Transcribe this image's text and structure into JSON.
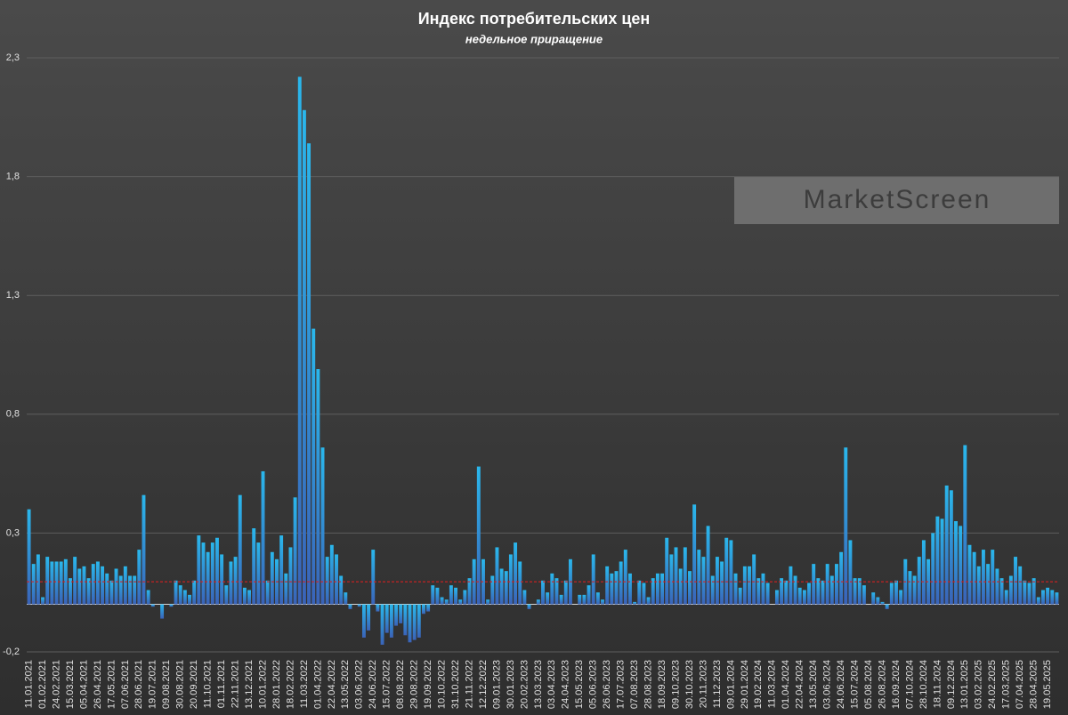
{
  "chart_data": {
    "type": "bar",
    "title": "Индекс потребительских цен",
    "subtitle": "недельное приращение",
    "watermark": "MarketScreen",
    "categories": [
      "11.01.2021",
      null,
      null,
      "01.02.2021",
      null,
      null,
      "24.02.2021",
      null,
      null,
      "15.03.2021",
      null,
      null,
      "05.04.2021",
      null,
      null,
      "26.04.2021",
      null,
      null,
      "17.05.2021",
      null,
      null,
      "07.06.2021",
      null,
      null,
      "28.06.2021",
      null,
      null,
      "19.07.2021",
      null,
      null,
      "09.08.2021",
      null,
      null,
      "30.08.2021",
      null,
      null,
      "20.09.2021",
      null,
      null,
      "11.10.2021",
      null,
      null,
      "01.11.2021",
      null,
      null,
      "22.11.2021",
      null,
      null,
      "13.12.2021",
      null,
      null,
      "10.01.2022",
      null,
      null,
      "28.01.2022",
      null,
      null,
      "18.02.2022",
      null,
      null,
      "11.03.2022",
      null,
      null,
      "01.04.2022",
      null,
      null,
      "22.04.2022",
      null,
      null,
      "13.05.2022",
      null,
      null,
      "03.06.2022",
      null,
      null,
      "24.06.2022",
      null,
      null,
      "15.07.2022",
      null,
      null,
      "08.08.2022",
      null,
      null,
      "29.08.2022",
      null,
      null,
      "19.09.2022",
      null,
      null,
      "10.10.2022",
      null,
      null,
      "31.10.2022",
      null,
      null,
      "21.11.2022",
      null,
      null,
      "12.12.2022",
      null,
      null,
      "09.01.2023",
      null,
      null,
      "30.01.2023",
      null,
      null,
      "20.02.2023",
      null,
      null,
      "13.03.2023",
      null,
      null,
      "03.04.2023",
      null,
      null,
      "24.04.2023",
      null,
      null,
      "15.05.2023",
      null,
      null,
      "05.06.2023",
      null,
      null,
      "26.06.2023",
      null,
      null,
      "17.07.2023",
      null,
      null,
      "07.08.2023",
      null,
      null,
      "28.08.2023",
      null,
      null,
      "18.09.2023",
      null,
      null,
      "09.10.2023",
      null,
      null,
      "30.10.2023",
      null,
      null,
      "20.11.2023",
      null,
      null,
      "11.12.2023",
      null,
      null,
      "09.01.2024",
      null,
      null,
      "29.01.2024",
      null,
      null,
      "19.02.2024",
      null,
      null,
      "11.03.2024",
      null,
      null,
      "01.04.2024",
      null,
      null,
      "22.04.2024",
      null,
      null,
      "13.05.2024",
      null,
      null,
      "03.06.2024",
      null,
      null,
      "24.06.2024",
      null,
      null,
      "15.07.2024",
      null,
      null,
      "05.08.2024",
      null,
      null,
      "26.08.2024",
      null,
      null,
      "16.09.2024",
      null,
      null,
      "07.10.2024",
      null,
      null,
      "28.10.2024",
      null,
      null,
      "18.11.2024",
      null,
      null,
      "09.12.2024",
      null,
      null,
      "13.01.2025",
      null,
      null,
      "03.02.2025",
      null,
      null,
      "24.02.2025",
      null,
      null,
      "17.03.2025",
      null,
      null,
      "07.04.2025",
      null,
      null,
      "28.04.2025",
      null,
      null,
      "19.05.2025",
      null,
      null
    ],
    "values": [
      0.4,
      0.17,
      0.21,
      0.03,
      0.2,
      0.18,
      0.18,
      0.18,
      0.19,
      0.11,
      0.2,
      0.15,
      0.16,
      0.11,
      0.17,
      0.18,
      0.16,
      0.13,
      0.1,
      0.15,
      0.12,
      0.16,
      0.12,
      0.12,
      0.23,
      0.46,
      0.06,
      -0.01,
      0.0,
      -0.06,
      0.0,
      -0.01,
      0.1,
      0.08,
      0.06,
      0.04,
      0.1,
      0.29,
      0.26,
      0.22,
      0.26,
      0.28,
      0.21,
      0.08,
      0.18,
      0.2,
      0.46,
      0.07,
      0.06,
      0.32,
      0.26,
      0.56,
      0.1,
      0.22,
      0.19,
      0.29,
      0.13,
      0.24,
      0.45,
      2.22,
      2.08,
      1.94,
      1.16,
      0.99,
      0.66,
      0.2,
      0.25,
      0.21,
      0.12,
      0.05,
      -0.02,
      0.0,
      -0.01,
      -0.14,
      -0.11,
      0.23,
      -0.03,
      -0.17,
      -0.12,
      -0.14,
      -0.09,
      -0.08,
      -0.13,
      -0.16,
      -0.15,
      -0.14,
      -0.04,
      -0.03,
      0.08,
      0.07,
      0.03,
      0.02,
      0.08,
      0.07,
      0.02,
      0.06,
      0.11,
      0.19,
      0.58,
      0.19,
      0.02,
      0.12,
      0.24,
      0.15,
      0.14,
      0.21,
      0.26,
      0.18,
      0.06,
      -0.02,
      0.0,
      0.02,
      0.1,
      0.05,
      0.13,
      0.11,
      0.04,
      0.1,
      0.19,
      0.0,
      0.04,
      0.04,
      0.08,
      0.21,
      0.05,
      0.02,
      0.16,
      0.13,
      0.14,
      0.18,
      0.23,
      0.13,
      0.01,
      0.1,
      0.09,
      0.03,
      0.11,
      0.13,
      0.13,
      0.28,
      0.21,
      0.24,
      0.15,
      0.24,
      0.14,
      0.42,
      0.23,
      0.2,
      0.33,
      0.12,
      0.2,
      0.18,
      0.28,
      0.27,
      0.13,
      0.07,
      0.16,
      0.16,
      0.21,
      0.11,
      0.13,
      0.09,
      0.0,
      0.06,
      0.11,
      0.1,
      0.16,
      0.12,
      0.07,
      0.06,
      0.09,
      0.17,
      0.11,
      0.1,
      0.17,
      0.12,
      0.17,
      0.22,
      0.66,
      0.27,
      0.11,
      0.11,
      0.08,
      0.0,
      0.05,
      0.03,
      0.01,
      -0.02,
      0.09,
      0.1,
      0.06,
      0.19,
      0.14,
      0.12,
      0.2,
      0.27,
      0.19,
      0.3,
      0.37,
      0.36,
      0.5,
      0.48,
      0.35,
      0.33,
      0.67,
      0.25,
      0.22,
      0.16,
      0.23,
      0.17,
      0.23,
      0.15,
      0.11,
      0.06,
      0.12,
      0.2,
      0.16,
      0.1,
      0.09,
      0.11,
      0.03,
      0.06,
      0.07,
      0.06,
      0.05
    ],
    "color": "#1ea9e6",
    "reference_line": 0.095,
    "reference_color": "#d42020",
    "ylim": [
      -0.2,
      2.3
    ],
    "yticks": [
      {
        "value": -0.2,
        "label": "-0,2"
      },
      {
        "value": 0.3,
        "label": "0,3"
      },
      {
        "value": 0.8,
        "label": "0,8"
      },
      {
        "value": 1.3,
        "label": "1,3"
      },
      {
        "value": 1.8,
        "label": "1,8"
      },
      {
        "value": 2.3,
        "label": "2,3"
      }
    ],
    "grid": true
  }
}
